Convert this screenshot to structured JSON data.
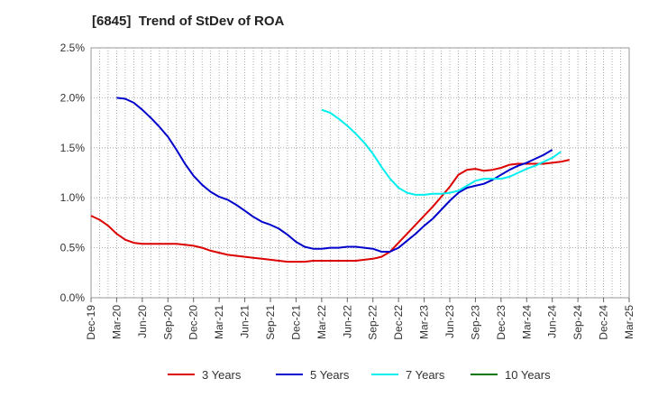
{
  "title": "[6845]  Trend of StDev of ROA",
  "chart_data": {
    "type": "line",
    "title": "[6845]  Trend of StDev of ROA",
    "xlabel": "",
    "ylabel": "",
    "x_ticks": [
      "Dec-19",
      "Mar-20",
      "Jun-20",
      "Sep-20",
      "Dec-20",
      "Mar-21",
      "Jun-21",
      "Sep-21",
      "Dec-21",
      "Mar-22",
      "Jun-22",
      "Sep-22",
      "Dec-22",
      "Mar-23",
      "Jun-23",
      "Sep-23",
      "Dec-23",
      "Mar-24",
      "Jun-24",
      "Sep-24",
      "Dec-24",
      "Mar-25"
    ],
    "y_ticks": [
      "0.0%",
      "0.5%",
      "1.0%",
      "1.5%",
      "2.0%",
      "2.5%"
    ],
    "ylim": [
      0,
      2.5
    ],
    "grid": true,
    "legend_position": "bottom",
    "series": [
      {
        "name": "3 Years",
        "color": "#dd0000",
        "x": [
          0,
          1,
          2,
          3,
          4,
          5,
          6,
          7,
          8,
          9,
          10,
          11,
          12,
          13,
          14,
          15,
          16,
          17,
          18,
          19,
          20,
          21,
          22,
          23,
          24,
          25,
          26,
          27,
          28,
          29,
          30,
          31,
          32,
          33,
          34,
          35,
          36,
          37,
          38,
          39,
          40,
          41,
          42,
          43,
          44,
          45,
          46,
          47,
          48,
          49,
          50,
          51,
          52,
          53,
          54,
          55,
          56,
          57,
          58,
          59,
          60
        ],
        "values": [
          0.82,
          0.78,
          0.72,
          0.64,
          0.58,
          0.55,
          0.54,
          0.54,
          0.54,
          0.54,
          0.54,
          0.53,
          0.52,
          0.5,
          0.47,
          0.45,
          0.43,
          0.42,
          0.41,
          0.4,
          0.39,
          0.38,
          0.37,
          0.36,
          0.36,
          0.36,
          0.37,
          0.37,
          0.37,
          0.37,
          0.37,
          0.37,
          0.38,
          0.39,
          0.41,
          0.46,
          0.55,
          0.64,
          0.73,
          0.82,
          0.91,
          1.01,
          1.11,
          1.23,
          1.28,
          1.29,
          1.27,
          1.28,
          1.3,
          1.33,
          1.34,
          1.34,
          1.34,
          1.34,
          1.35,
          1.36,
          1.38,
          null,
          null,
          null,
          null
        ]
      },
      {
        "name": "5 Years",
        "color": "#0000cc",
        "x": [
          3,
          4,
          5,
          6,
          7,
          8,
          9,
          10,
          11,
          12,
          13,
          14,
          15,
          16,
          17,
          18,
          19,
          20,
          21,
          22,
          23,
          24,
          25,
          26,
          27,
          28,
          29,
          30,
          31,
          32,
          33,
          34,
          35,
          36,
          37,
          38,
          39,
          40,
          41,
          42,
          43,
          44,
          45,
          46,
          47,
          48,
          49,
          50,
          51,
          52,
          53,
          54,
          55,
          56,
          57,
          58,
          59,
          60
        ],
        "values": [
          2.0,
          1.99,
          1.95,
          1.88,
          1.8,
          1.71,
          1.61,
          1.48,
          1.34,
          1.22,
          1.13,
          1.06,
          1.01,
          0.98,
          0.93,
          0.87,
          0.81,
          0.76,
          0.73,
          0.69,
          0.63,
          0.56,
          0.51,
          0.49,
          0.49,
          0.5,
          0.5,
          0.51,
          0.51,
          0.5,
          0.49,
          0.46,
          0.46,
          0.5,
          0.57,
          0.64,
          0.72,
          0.79,
          0.88,
          0.97,
          1.05,
          1.1,
          1.12,
          1.14,
          1.18,
          1.23,
          1.28,
          1.32,
          1.35,
          1.39,
          1.43,
          1.48,
          null,
          null,
          null,
          null,
          null,
          null
        ]
      },
      {
        "name": "7 Years",
        "color": "#00eeee",
        "x": [
          27,
          28,
          29,
          30,
          31,
          32,
          33,
          34,
          35,
          36,
          37,
          38,
          39,
          40,
          41,
          42,
          43,
          44,
          45,
          46,
          47,
          48,
          49,
          50,
          51,
          52,
          53,
          54,
          55,
          56,
          57,
          58,
          59,
          60
        ],
        "values": [
          1.88,
          1.85,
          1.79,
          1.72,
          1.64,
          1.55,
          1.44,
          1.31,
          1.19,
          1.1,
          1.05,
          1.03,
          1.03,
          1.04,
          1.04,
          1.05,
          1.07,
          1.12,
          1.17,
          1.19,
          1.19,
          1.19,
          1.21,
          1.25,
          1.29,
          1.32,
          1.36,
          1.4,
          1.46,
          null,
          null,
          null,
          null,
          null
        ]
      },
      {
        "name": "10 Years",
        "color": "#007700",
        "x": [],
        "values": []
      }
    ]
  }
}
